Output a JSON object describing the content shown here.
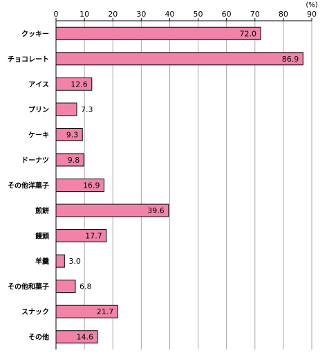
{
  "chart_data": {
    "type": "bar",
    "orientation": "horizontal",
    "unit": "(%)",
    "xlim": [
      0,
      90
    ],
    "ticks": [
      0,
      10,
      20,
      30,
      40,
      50,
      60,
      70,
      80,
      90
    ],
    "grid": true,
    "bar_color": "#f283a6",
    "categories": [
      "クッキー",
      "チョコレート",
      "アイス",
      "プリン",
      "ケーキ",
      "ドーナツ",
      "その他洋菓子",
      "煎餅",
      "饅頭",
      "羊羹",
      "その他和菓子",
      "スナック",
      "その他"
    ],
    "values": [
      72.0,
      86.9,
      12.6,
      7.3,
      9.3,
      9.8,
      16.9,
      39.6,
      17.7,
      3.0,
      6.8,
      21.7,
      14.6
    ],
    "value_labels": [
      "72.0",
      "86.9",
      "12.6",
      "7.3",
      "9.3",
      "9.8",
      "16.9",
      "39.6",
      "17.7",
      "3.0",
      "6.8",
      "21.7",
      "14.6"
    ]
  }
}
